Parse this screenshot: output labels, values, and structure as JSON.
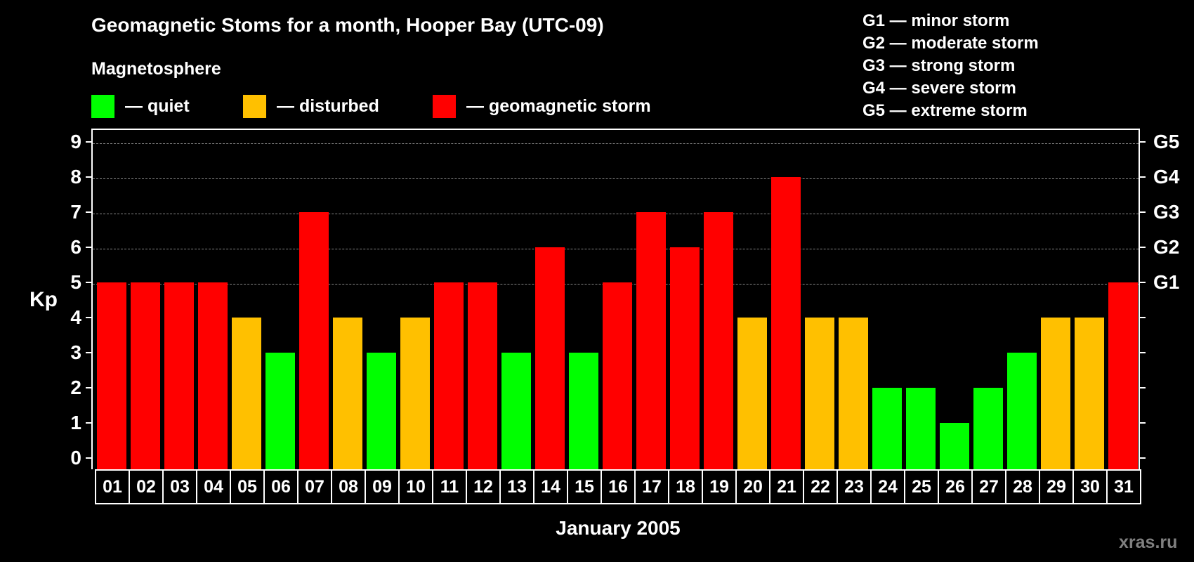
{
  "chart_data": {
    "type": "bar",
    "title": "Geomagnetic Stoms for a month, Hooper Bay (UTC-09)",
    "xlabel": "January 2005",
    "ylabel": "Kp",
    "ylim": [
      0,
      9
    ],
    "yticks": [
      0,
      1,
      2,
      3,
      4,
      5,
      6,
      7,
      8,
      9
    ],
    "right_axis_labels": [
      {
        "value": 5,
        "label": "G1"
      },
      {
        "value": 6,
        "label": "G2"
      },
      {
        "value": 7,
        "label": "G3"
      },
      {
        "value": 8,
        "label": "G4"
      },
      {
        "value": 9,
        "label": "G5"
      }
    ],
    "grid": "dashed horizontal lines at 5-9",
    "categories": [
      "01",
      "02",
      "03",
      "04",
      "05",
      "06",
      "07",
      "08",
      "09",
      "10",
      "11",
      "12",
      "13",
      "14",
      "15",
      "16",
      "17",
      "18",
      "19",
      "20",
      "21",
      "22",
      "23",
      "24",
      "25",
      "26",
      "27",
      "28",
      "29",
      "30",
      "31"
    ],
    "values": [
      5,
      5,
      5,
      5,
      4,
      3,
      7,
      4,
      3,
      4,
      5,
      5,
      3,
      6,
      3,
      5,
      7,
      6,
      7,
      4,
      8,
      4,
      4,
      2,
      2,
      1,
      2,
      3,
      4,
      4,
      5
    ],
    "color_rule": {
      "quiet": "Kp <= 3",
      "disturbed": "Kp = 4",
      "geomagnetic storm": "Kp >= 5"
    }
  },
  "header": {
    "title": "Geomagnetic Stoms for a month, Hooper Bay (UTC-09)",
    "subtitle": "Magnetosphere"
  },
  "legend": [
    {
      "label": "— quiet",
      "color": "#00ff00"
    },
    {
      "label": "— disturbed",
      "color": "#ffc000"
    },
    {
      "label": "— geomagnetic storm",
      "color": "#ff0000"
    }
  ],
  "g_legend": [
    "G1 — minor storm",
    "G2 — moderate storm",
    "G3 — strong storm",
    "G4 — severe storm",
    "G5 — extreme storm"
  ],
  "axis": {
    "y_title": "Kp",
    "x_title": "January 2005"
  },
  "colors": {
    "quiet": "#00ff00",
    "disturbed": "#ffc000",
    "storm": "#ff0000",
    "grid": "#888888"
  },
  "credit": "xras.ru"
}
